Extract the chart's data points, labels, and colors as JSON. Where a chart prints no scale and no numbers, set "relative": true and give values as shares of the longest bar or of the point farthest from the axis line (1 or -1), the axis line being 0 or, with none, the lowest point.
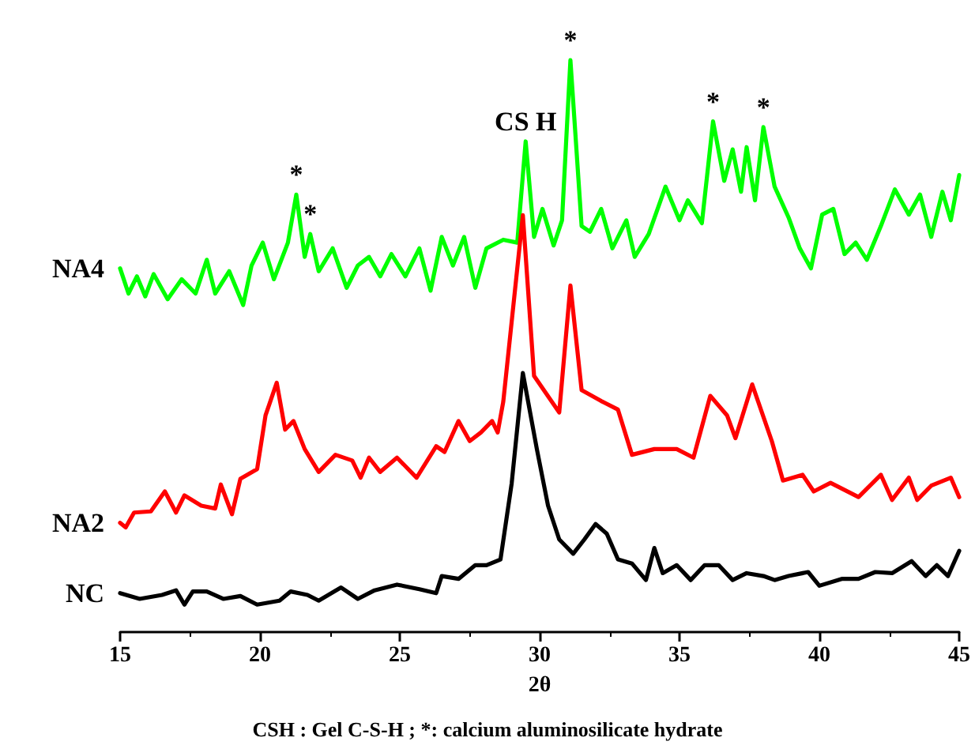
{
  "chart_data": {
    "type": "line",
    "relative": true,
    "xlabel": "2θ",
    "xlim": [
      15,
      45
    ],
    "xticks": [
      15,
      20,
      25,
      30,
      35,
      40,
      45
    ],
    "marker": "none",
    "series": [
      {
        "name": "NA4",
        "color": "#00ff00",
        "x": [
          15,
          15.3,
          15.6,
          15.9,
          16.2,
          16.7,
          17.2,
          17.7,
          18.1,
          18.4,
          18.9,
          19.4,
          19.7,
          20.1,
          20.5,
          21.0,
          21.3,
          21.6,
          21.8,
          22.1,
          22.6,
          23.1,
          23.5,
          23.9,
          24.3,
          24.7,
          25.2,
          25.7,
          26.1,
          26.5,
          26.9,
          27.3,
          27.7,
          28.1,
          28.7,
          29.2,
          29.5,
          29.8,
          30.1,
          30.5,
          30.8,
          31.1,
          31.5,
          31.8,
          32.2,
          32.6,
          33.1,
          33.4,
          33.9,
          34.5,
          35.0,
          35.3,
          35.8,
          36.2,
          36.6,
          36.9,
          37.2,
          37.4,
          37.7,
          38.0,
          38.4,
          38.9,
          39.3,
          39.7,
          40.1,
          40.5,
          40.9,
          41.3,
          41.7,
          42.2,
          42.7,
          43.2,
          43.6,
          44.0,
          44.4,
          44.7,
          45
        ],
        "values": [
          0.636,
          0.592,
          0.622,
          0.587,
          0.626,
          0.582,
          0.617,
          0.592,
          0.651,
          0.592,
          0.631,
          0.572,
          0.641,
          0.681,
          0.617,
          0.681,
          0.765,
          0.656,
          0.696,
          0.631,
          0.671,
          0.602,
          0.641,
          0.656,
          0.622,
          0.661,
          0.622,
          0.671,
          0.597,
          0.691,
          0.641,
          0.691,
          0.602,
          0.671,
          0.686,
          0.681,
          0.858,
          0.691,
          0.74,
          0.676,
          0.72,
          1.0,
          0.71,
          0.7,
          0.74,
          0.671,
          0.72,
          0.656,
          0.696,
          0.779,
          0.72,
          0.755,
          0.715,
          0.893,
          0.789,
          0.844,
          0.77,
          0.848,
          0.755,
          0.883,
          0.779,
          0.725,
          0.671,
          0.636,
          0.73,
          0.74,
          0.661,
          0.681,
          0.651,
          0.71,
          0.774,
          0.73,
          0.765,
          0.691,
          0.77,
          0.72,
          0.799
        ]
      },
      {
        "name": "NA2",
        "color": "#ff0000",
        "x": [
          15,
          15.2,
          15.5,
          16.1,
          16.6,
          17.0,
          17.3,
          17.9,
          18.4,
          18.6,
          19.0,
          19.3,
          19.9,
          20.2,
          20.6,
          20.9,
          21.2,
          21.6,
          22.1,
          22.7,
          23.3,
          23.6,
          23.9,
          24.3,
          24.9,
          25.6,
          26.3,
          26.6,
          27.1,
          27.5,
          27.9,
          28.3,
          28.5,
          28.7,
          29.4,
          29.8,
          30.7,
          31.1,
          31.5,
          32.2,
          32.8,
          33.3,
          34.1,
          34.9,
          35.5,
          36.1,
          36.7,
          37.0,
          37.6,
          38.3,
          38.7,
          39.4,
          39.8,
          40.4,
          41.4,
          42.2,
          42.6,
          43.2,
          43.5,
          44.0,
          44.7,
          45
        ],
        "values": [
          0.191,
          0.183,
          0.209,
          0.211,
          0.246,
          0.209,
          0.239,
          0.221,
          0.216,
          0.258,
          0.206,
          0.268,
          0.285,
          0.379,
          0.436,
          0.354,
          0.369,
          0.32,
          0.28,
          0.31,
          0.3,
          0.27,
          0.305,
          0.28,
          0.305,
          0.27,
          0.325,
          0.315,
          0.369,
          0.334,
          0.349,
          0.369,
          0.349,
          0.403,
          0.729,
          0.448,
          0.384,
          0.606,
          0.423,
          0.404,
          0.389,
          0.31,
          0.32,
          0.32,
          0.305,
          0.413,
          0.379,
          0.339,
          0.433,
          0.334,
          0.265,
          0.275,
          0.246,
          0.261,
          0.236,
          0.275,
          0.231,
          0.27,
          0.231,
          0.256,
          0.27,
          0.236
        ]
      },
      {
        "name": "NC",
        "color": "#000000",
        "x": [
          15,
          15.7,
          16.5,
          17.0,
          17.3,
          17.6,
          18.1,
          18.7,
          19.3,
          19.9,
          20.7,
          21.1,
          21.7,
          22.1,
          22.9,
          23.5,
          24.1,
          24.9,
          25.7,
          26.3,
          26.5,
          27.1,
          27.7,
          28.1,
          28.6,
          29.0,
          29.4,
          29.9,
          30.3,
          30.7,
          31.2,
          31.6,
          32.0,
          32.4,
          32.8,
          33.3,
          33.8,
          34.1,
          34.4,
          34.9,
          35.4,
          35.9,
          36.4,
          36.9,
          37.4,
          38.0,
          38.4,
          38.9,
          39.6,
          40.0,
          40.8,
          41.4,
          42.0,
          42.6,
          43.3,
          43.8,
          44.2,
          44.6,
          45
        ],
        "values": [
          0.068,
          0.058,
          0.065,
          0.073,
          0.048,
          0.071,
          0.071,
          0.058,
          0.063,
          0.048,
          0.055,
          0.071,
          0.065,
          0.055,
          0.078,
          0.058,
          0.073,
          0.083,
          0.075,
          0.068,
          0.098,
          0.093,
          0.117,
          0.117,
          0.127,
          0.26,
          0.453,
          0.32,
          0.221,
          0.162,
          0.137,
          0.162,
          0.189,
          0.172,
          0.127,
          0.12,
          0.091,
          0.147,
          0.103,
          0.117,
          0.091,
          0.117,
          0.117,
          0.091,
          0.103,
          0.098,
          0.091,
          0.098,
          0.105,
          0.081,
          0.093,
          0.093,
          0.105,
          0.103,
          0.124,
          0.098,
          0.117,
          0.098,
          0.142
        ]
      }
    ],
    "annotations": [
      {
        "text": "*",
        "x": 21.3,
        "y": 0.765
      },
      {
        "text": "*",
        "x": 21.8,
        "y": 0.696
      },
      {
        "text": "CS H",
        "x": 29.5,
        "y": 0.858
      },
      {
        "text": "*",
        "x": 31.1,
        "y": 1.0
      },
      {
        "text": "*",
        "x": 36.2,
        "y": 0.893
      },
      {
        "text": "*",
        "x": 38.0,
        "y": 0.883
      },
      "CSH : Gel C-S-H ; *: calcium aluminosilicate hydrate"
    ]
  }
}
